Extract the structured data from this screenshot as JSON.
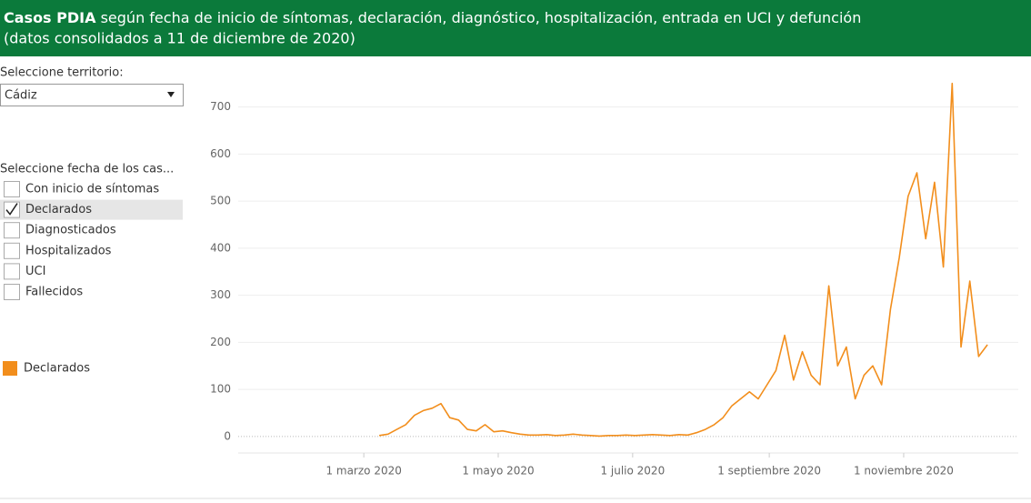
{
  "header": {
    "title_bold": "Casos PDIA",
    "title_rest": "según fecha de inicio de síntomas, declaración, diagnóstico, hospitalización, entrada en UCI y defunción",
    "subtitle": "(datos consolidados a 11 de diciembre de 2020)"
  },
  "sidebar": {
    "territory_label": "Seleccione territorio:",
    "territory_value": "Cádiz",
    "date_label": "Seleccione fecha de los cas...",
    "options": [
      {
        "label": "Con inicio de síntomas",
        "checked": false
      },
      {
        "label": "Declarados",
        "checked": true
      },
      {
        "label": "Diagnosticados",
        "checked": false
      },
      {
        "label": "Hospitalizados",
        "checked": false
      },
      {
        "label": "UCI",
        "checked": false
      },
      {
        "label": "Fallecidos",
        "checked": false
      }
    ]
  },
  "chart_data": {
    "type": "line",
    "x": [
      "2020-03-08",
      "2020-03-12",
      "2020-03-16",
      "2020-03-20",
      "2020-03-24",
      "2020-03-28",
      "2020-04-01",
      "2020-04-05",
      "2020-04-09",
      "2020-04-13",
      "2020-04-17",
      "2020-04-21",
      "2020-04-25",
      "2020-04-29",
      "2020-05-03",
      "2020-05-07",
      "2020-05-11",
      "2020-05-15",
      "2020-05-19",
      "2020-05-23",
      "2020-05-27",
      "2020-05-31",
      "2020-06-04",
      "2020-06-08",
      "2020-06-12",
      "2020-06-16",
      "2020-06-20",
      "2020-06-24",
      "2020-06-28",
      "2020-07-02",
      "2020-07-06",
      "2020-07-10",
      "2020-07-14",
      "2020-07-18",
      "2020-07-22",
      "2020-07-26",
      "2020-07-30",
      "2020-08-03",
      "2020-08-07",
      "2020-08-11",
      "2020-08-15",
      "2020-08-19",
      "2020-08-23",
      "2020-08-27",
      "2020-08-31",
      "2020-09-04",
      "2020-09-08",
      "2020-09-12",
      "2020-09-16",
      "2020-09-20",
      "2020-09-24",
      "2020-09-28",
      "2020-10-02",
      "2020-10-06",
      "2020-10-10",
      "2020-10-14",
      "2020-10-18",
      "2020-10-22",
      "2020-10-26",
      "2020-10-30",
      "2020-11-03",
      "2020-11-07",
      "2020-11-11",
      "2020-11-15",
      "2020-11-19",
      "2020-11-23",
      "2020-11-27",
      "2020-12-01",
      "2020-12-05",
      "2020-12-09"
    ],
    "series": [
      {
        "name": "Declarados",
        "color": "#f28e1c",
        "values": [
          2,
          5,
          15,
          25,
          45,
          55,
          60,
          70,
          40,
          35,
          15,
          12,
          25,
          10,
          12,
          8,
          5,
          3,
          3,
          4,
          2,
          3,
          5,
          3,
          2,
          1,
          2,
          2,
          3,
          2,
          3,
          4,
          3,
          2,
          4,
          3,
          8,
          15,
          25,
          40,
          65,
          80,
          95,
          80,
          110,
          140,
          215,
          120,
          180,
          130,
          110,
          320,
          150,
          190,
          80,
          130,
          150,
          110,
          270,
          380,
          510,
          560,
          420,
          540,
          360,
          750,
          190,
          330,
          170,
          195
        ]
      }
    ],
    "xlim": [
      "2020-01-04",
      "2020-12-23"
    ],
    "xticks": [
      {
        "value": "2020-03-01",
        "label": "1 marzo 2020"
      },
      {
        "value": "2020-05-01",
        "label": "1 mayo 2020"
      },
      {
        "value": "2020-07-01",
        "label": "1 julio 2020"
      },
      {
        "value": "2020-09-01",
        "label": "1 septiembre 2020"
      },
      {
        "value": "2020-11-01",
        "label": "1 noviembre 2020"
      }
    ],
    "ylim": [
      -35,
      790
    ],
    "yticks": [
      0,
      100,
      200,
      300,
      400,
      500,
      600,
      700
    ],
    "grid": true
  }
}
